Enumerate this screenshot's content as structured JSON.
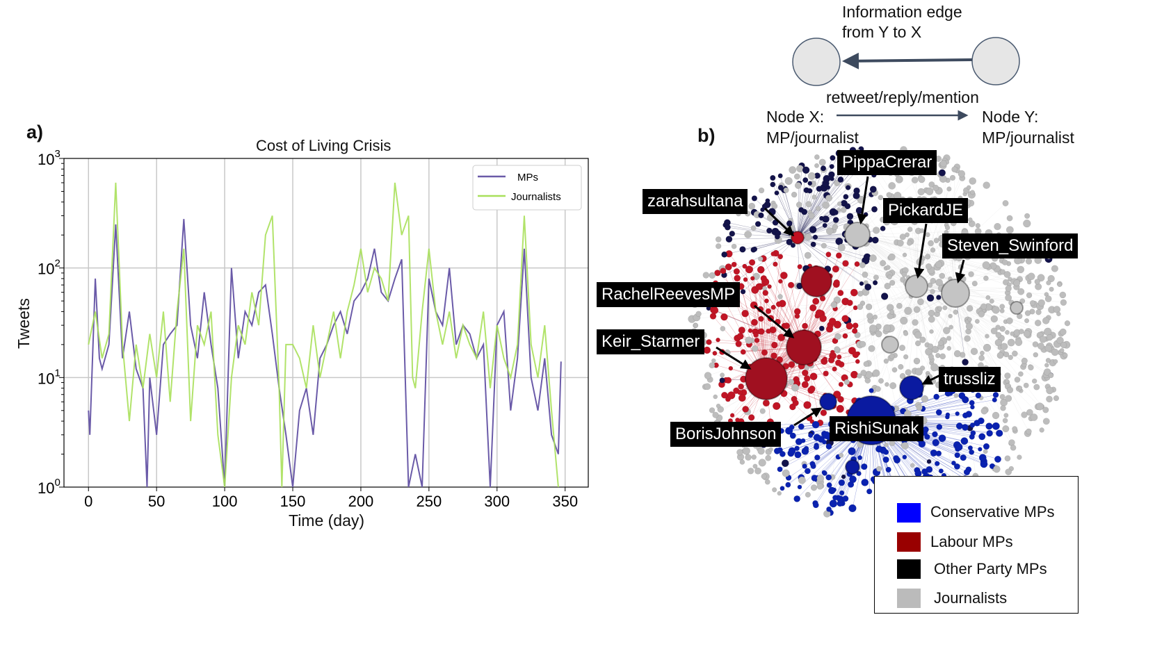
{
  "panel_a": {
    "label": "a)",
    "chart_data": {
      "type": "line",
      "title": "Cost of Living Crisis",
      "xlabel": "Time (day)",
      "ylabel": "Tweets",
      "xlim": [
        -18,
        367
      ],
      "ylim": [
        1,
        1000
      ],
      "yscale": "log",
      "grid": true,
      "legend_placement": "top-right",
      "xticks": [
        "0",
        "50",
        "100",
        "150",
        "200",
        "250",
        "300",
        "350"
      ],
      "yticks": [
        {
          "base": "10",
          "exp": "0"
        },
        {
          "base": "10",
          "exp": "1"
        },
        {
          "base": "10",
          "exp": "2"
        },
        {
          "base": "10",
          "exp": "3"
        }
      ],
      "series": [
        {
          "name": "MPs",
          "color": "#6a5aa8",
          "x": [
            0,
            1,
            5,
            8,
            10,
            15,
            20,
            25,
            30,
            35,
            40,
            43,
            45,
            50,
            55,
            60,
            65,
            70,
            75,
            80,
            85,
            90,
            95,
            100,
            105,
            110,
            115,
            120,
            125,
            130,
            135,
            140,
            145,
            150,
            155,
            160,
            165,
            170,
            175,
            180,
            185,
            190,
            195,
            200,
            205,
            210,
            215,
            220,
            225,
            230,
            235,
            240,
            245,
            250,
            255,
            260,
            265,
            270,
            275,
            280,
            285,
            290,
            295,
            300,
            305,
            310,
            315,
            320,
            325,
            330,
            335,
            340,
            345,
            347
          ],
          "y": [
            5,
            3,
            80,
            15,
            12,
            20,
            250,
            15,
            40,
            12,
            8,
            1,
            10,
            3,
            20,
            25,
            30,
            280,
            30,
            15,
            60,
            20,
            8,
            1,
            100,
            15,
            40,
            30,
            60,
            70,
            25,
            8,
            3,
            1,
            5,
            8,
            3,
            15,
            20,
            30,
            40,
            25,
            50,
            60,
            80,
            150,
            60,
            50,
            80,
            120,
            1,
            2,
            1,
            80,
            40,
            30,
            100,
            20,
            30,
            25,
            15,
            20,
            1,
            30,
            40,
            5,
            15,
            150,
            10,
            5,
            15,
            3,
            2,
            14
          ]
        },
        {
          "name": "Journalists",
          "color": "#a8e05a",
          "x": [
            0,
            5,
            10,
            15,
            20,
            25,
            30,
            35,
            40,
            45,
            50,
            55,
            60,
            65,
            70,
            75,
            80,
            85,
            90,
            95,
            100,
            105,
            110,
            115,
            120,
            125,
            130,
            135,
            140,
            142,
            145,
            150,
            155,
            160,
            165,
            170,
            175,
            180,
            185,
            190,
            195,
            200,
            205,
            210,
            215,
            220,
            225,
            230,
            235,
            238,
            240,
            245,
            250,
            255,
            260,
            265,
            270,
            275,
            280,
            285,
            290,
            295,
            300,
            305,
            310,
            315,
            320,
            325,
            330,
            335,
            340,
            345
          ],
          "y": [
            20,
            40,
            15,
            25,
            600,
            20,
            4,
            20,
            8,
            25,
            10,
            40,
            6,
            40,
            150,
            4,
            30,
            20,
            40,
            3,
            1,
            10,
            30,
            20,
            60,
            30,
            200,
            300,
            8,
            1,
            20,
            20,
            15,
            8,
            30,
            10,
            20,
            40,
            15,
            40,
            70,
            150,
            60,
            100,
            80,
            50,
            600,
            200,
            300,
            10,
            8,
            40,
            150,
            40,
            20,
            40,
            15,
            30,
            20,
            15,
            40,
            8,
            30,
            15,
            10,
            20,
            300,
            20,
            10,
            30,
            5,
            1
          ]
        }
      ]
    }
  },
  "panel_b": {
    "label": "b)",
    "edge_diagram": {
      "top_text_1": "Information edge",
      "top_text_2": "from Y to X",
      "middle_text": "retweet/reply/mention",
      "node_x_1": "Node X:",
      "node_x_2": "MP/journalist",
      "node_y_1": "Node Y:",
      "node_y_2": "MP/journalist"
    },
    "accounts": [
      "zarahsultana",
      "PippaCrerar",
      "PickardJE",
      "Steven_Swinford",
      "RachelReevesMP",
      "Keir_Starmer",
      "trussliz",
      "BorisJohnson",
      "RishiSunak"
    ],
    "legend": [
      {
        "label": "Conservative MPs",
        "color": "#0000ff"
      },
      {
        "label": "Labour MPs",
        "color": "#990000"
      },
      {
        "label": "Other Party MPs",
        "color": "#000000"
      },
      {
        "label": "Journalists",
        "color": "#bbbbbb"
      }
    ]
  }
}
